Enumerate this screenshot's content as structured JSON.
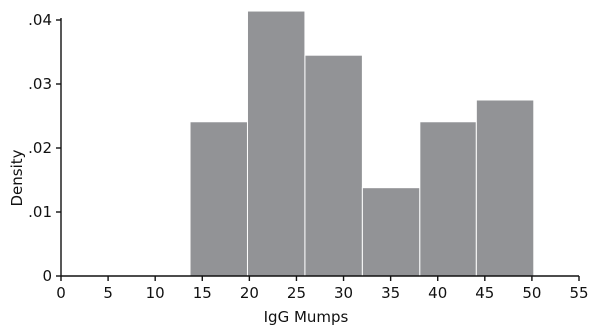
{
  "chart_data": {
    "type": "bar",
    "subtype": "histogram",
    "title": "",
    "xlabel": "IgG Mumps",
    "ylabel": "Density",
    "xlim": [
      0,
      55
    ],
    "ylim": [
      0,
      0.04
    ],
    "xticks": [
      0,
      5,
      10,
      15,
      20,
      25,
      30,
      35,
      40,
      45,
      50,
      55
    ],
    "xtick_labels": [
      "0",
      "5",
      "10",
      "15",
      "20",
      "25",
      "30",
      "35",
      "40",
      "45",
      "50",
      "55"
    ],
    "yticks": [
      0,
      0.01,
      0.02,
      0.03,
      0.04
    ],
    "ytick_labels": [
      "0",
      ".01",
      ".02",
      ".03",
      ".04"
    ],
    "bins": [
      {
        "x0": 13.7,
        "x1": 19.8,
        "density": 0.0241
      },
      {
        "x0": 19.8,
        "x1": 25.9,
        "density": 0.0414
      },
      {
        "x0": 25.9,
        "x1": 32.0,
        "density": 0.0345
      },
      {
        "x0": 32.0,
        "x1": 38.1,
        "density": 0.0138
      },
      {
        "x0": 38.1,
        "x1": 44.1,
        "density": 0.0241
      },
      {
        "x0": 44.1,
        "x1": 50.2,
        "density": 0.0275
      }
    ],
    "bar_color": "#929396",
    "grid": false,
    "legend": "none"
  }
}
